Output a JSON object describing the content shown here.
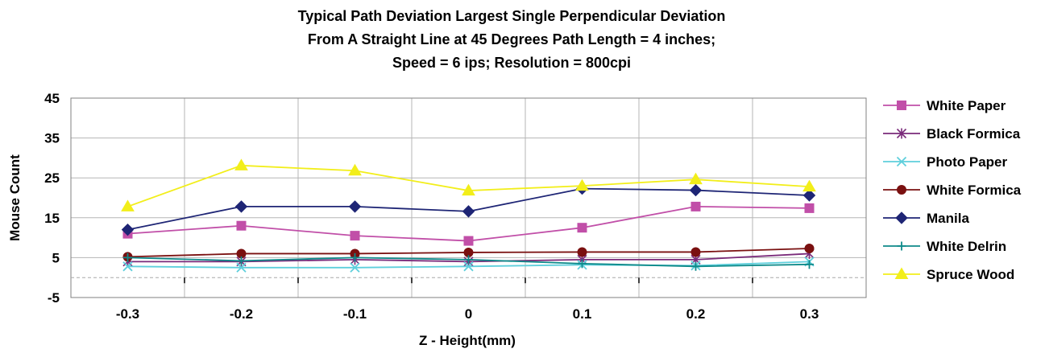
{
  "chart_data": {
    "type": "line",
    "title": [
      "Typical Path Deviation Largest Single Perpendicular Deviation",
      "From A Straight Line at 45 Degrees Path Length = 4 inches;",
      "Speed = 6 ips; Resolution = 800cpi"
    ],
    "xlabel": "Z - Height(mm)",
    "ylabel": "Mouse Count",
    "categories": [
      "-0.3",
      "-0.2",
      "-0.1",
      "0",
      "0.1",
      "0.2",
      "0.3"
    ],
    "ylim": [
      -5,
      45
    ],
    "yticks": [
      "-5",
      "5",
      "15",
      "25",
      "35",
      "45"
    ],
    "grid": true,
    "legend_position": "right",
    "series": [
      {
        "name": "White Paper",
        "color": "#c14fa8",
        "marker": "square",
        "values": [
          11,
          13,
          10.5,
          9.2,
          12.5,
          17.8,
          17.4
        ]
      },
      {
        "name": "Black Formica",
        "color": "#7a2a7a",
        "marker": "asterisk",
        "values": [
          4,
          4,
          4.5,
          4,
          4.5,
          4.5,
          6
        ]
      },
      {
        "name": "Photo Paper",
        "color": "#5ecfdc",
        "marker": "x",
        "values": [
          2.8,
          2.5,
          2.5,
          2.8,
          3.2,
          3,
          4
        ]
      },
      {
        "name": "White Formica",
        "color": "#7a1010",
        "marker": "circle",
        "values": [
          5.2,
          6,
          6,
          6.3,
          6.4,
          6.4,
          7.3
        ]
      },
      {
        "name": "Manila",
        "color": "#1e2575",
        "marker": "diamond",
        "values": [
          12,
          17.8,
          17.8,
          16.6,
          22.3,
          21.9,
          20.6
        ]
      },
      {
        "name": "White Delrin",
        "color": "#0e8a8a",
        "marker": "plus",
        "values": [
          5,
          4.2,
          5,
          4.5,
          3.5,
          2.8,
          3.3
        ]
      },
      {
        "name": "Spruce Wood",
        "color": "#f2ee1a",
        "marker": "triangle",
        "values": [
          17.8,
          28.1,
          26.8,
          21.8,
          23,
          24.6,
          22.8
        ]
      }
    ]
  }
}
